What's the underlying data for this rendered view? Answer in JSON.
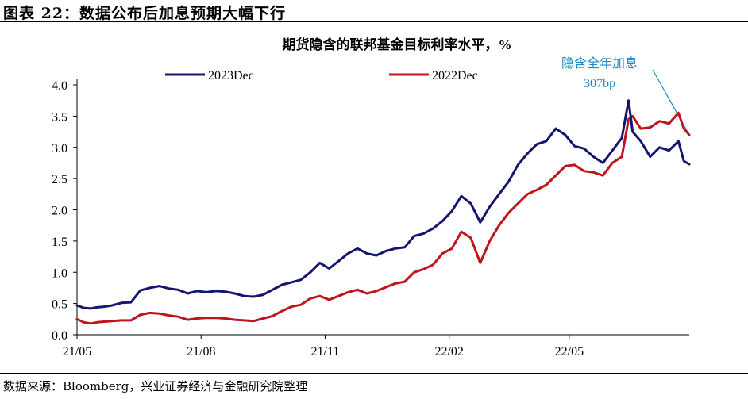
{
  "figure_title": "图表 22：数据公布后加息预期大幅下行",
  "source": "数据来源：Bloomberg，兴业证券经济与金融研究院整理",
  "colors": {
    "series_2023": "#14166e",
    "series_2022": "#c0141c",
    "annotation": "#1f8bc6"
  },
  "chart_data": {
    "type": "line",
    "title": "期货隐含的联邦基金目标利率水平，%",
    "xlabel": "",
    "ylabel": "",
    "ylim": [
      0,
      4.0
    ],
    "yticks": [
      "0.0",
      "0.5",
      "1.0",
      "1.5",
      "2.0",
      "2.5",
      "3.0",
      "3.5",
      "4.0"
    ],
    "xlim": [
      "2021-05-01",
      "2022-07-29"
    ],
    "xticks": [
      {
        "label": "21/05",
        "date": "2021-05-01"
      },
      {
        "label": "21/08",
        "date": "2021-08-01"
      },
      {
        "label": "21/11",
        "date": "2021-11-01"
      },
      {
        "label": "22/02",
        "date": "2022-02-01"
      },
      {
        "label": "22/05",
        "date": "2022-05-01"
      }
    ],
    "grid": false,
    "legend": "top",
    "annotation": {
      "line1": "隐含全年加息",
      "line2": "307bp",
      "date": "2022-07-29",
      "value": 3.2
    },
    "series": [
      {
        "name": "2023Dec",
        "points": [
          [
            "2021-05-01",
            0.47
          ],
          [
            "2021-05-06",
            0.43
          ],
          [
            "2021-05-11",
            0.42
          ],
          [
            "2021-05-16",
            0.44
          ],
          [
            "2021-05-21",
            0.45
          ],
          [
            "2021-05-27",
            0.47
          ],
          [
            "2021-06-03",
            0.51
          ],
          [
            "2021-06-10",
            0.52
          ],
          [
            "2021-06-17",
            0.71
          ],
          [
            "2021-06-24",
            0.75
          ],
          [
            "2021-07-01",
            0.78
          ],
          [
            "2021-07-08",
            0.74
          ],
          [
            "2021-07-15",
            0.72
          ],
          [
            "2021-07-22",
            0.66
          ],
          [
            "2021-07-29",
            0.7
          ],
          [
            "2021-08-05",
            0.68
          ],
          [
            "2021-08-12",
            0.7
          ],
          [
            "2021-08-19",
            0.69
          ],
          [
            "2021-08-26",
            0.66
          ],
          [
            "2021-09-02",
            0.62
          ],
          [
            "2021-09-09",
            0.61
          ],
          [
            "2021-09-16",
            0.64
          ],
          [
            "2021-09-23",
            0.72
          ],
          [
            "2021-09-30",
            0.8
          ],
          [
            "2021-10-07",
            0.84
          ],
          [
            "2021-10-14",
            0.88
          ],
          [
            "2021-10-21",
            1.0
          ],
          [
            "2021-10-28",
            1.15
          ],
          [
            "2021-11-04",
            1.06
          ],
          [
            "2021-11-11",
            1.18
          ],
          [
            "2021-11-18",
            1.3
          ],
          [
            "2021-11-25",
            1.38
          ],
          [
            "2021-12-02",
            1.3
          ],
          [
            "2021-12-09",
            1.27
          ],
          [
            "2021-12-16",
            1.34
          ],
          [
            "2021-12-23",
            1.38
          ],
          [
            "2021-12-30",
            1.4
          ],
          [
            "2022-01-06",
            1.58
          ],
          [
            "2022-01-13",
            1.62
          ],
          [
            "2022-01-20",
            1.7
          ],
          [
            "2022-01-27",
            1.82
          ],
          [
            "2022-02-03",
            1.98
          ],
          [
            "2022-02-10",
            2.22
          ],
          [
            "2022-02-17",
            2.1
          ],
          [
            "2022-02-24",
            1.8
          ],
          [
            "2022-03-03",
            2.05
          ],
          [
            "2022-03-10",
            2.25
          ],
          [
            "2022-03-17",
            2.45
          ],
          [
            "2022-03-24",
            2.72
          ],
          [
            "2022-03-31",
            2.9
          ],
          [
            "2022-04-07",
            3.05
          ],
          [
            "2022-04-14",
            3.1
          ],
          [
            "2022-04-21",
            3.3
          ],
          [
            "2022-04-28",
            3.2
          ],
          [
            "2022-05-05",
            3.02
          ],
          [
            "2022-05-12",
            2.98
          ],
          [
            "2022-05-19",
            2.85
          ],
          [
            "2022-05-26",
            2.75
          ],
          [
            "2022-06-02",
            2.95
          ],
          [
            "2022-06-09",
            3.15
          ],
          [
            "2022-06-14",
            3.75
          ],
          [
            "2022-06-17",
            3.25
          ],
          [
            "2022-06-23",
            3.1
          ],
          [
            "2022-06-30",
            2.85
          ],
          [
            "2022-07-07",
            3.0
          ],
          [
            "2022-07-14",
            2.95
          ],
          [
            "2022-07-21",
            3.1
          ],
          [
            "2022-07-25",
            2.78
          ],
          [
            "2022-07-29",
            2.73
          ]
        ]
      },
      {
        "name": "2022Dec",
        "points": [
          [
            "2021-05-01",
            0.25
          ],
          [
            "2021-05-06",
            0.2
          ],
          [
            "2021-05-11",
            0.18
          ],
          [
            "2021-05-16",
            0.2
          ],
          [
            "2021-05-21",
            0.21
          ],
          [
            "2021-05-27",
            0.22
          ],
          [
            "2021-06-03",
            0.23
          ],
          [
            "2021-06-10",
            0.23
          ],
          [
            "2021-06-17",
            0.32
          ],
          [
            "2021-06-24",
            0.35
          ],
          [
            "2021-07-01",
            0.34
          ],
          [
            "2021-07-08",
            0.31
          ],
          [
            "2021-07-15",
            0.29
          ],
          [
            "2021-07-22",
            0.24
          ],
          [
            "2021-07-29",
            0.26
          ],
          [
            "2021-08-05",
            0.27
          ],
          [
            "2021-08-12",
            0.27
          ],
          [
            "2021-08-19",
            0.26
          ],
          [
            "2021-08-26",
            0.24
          ],
          [
            "2021-09-02",
            0.23
          ],
          [
            "2021-09-09",
            0.22
          ],
          [
            "2021-09-16",
            0.26
          ],
          [
            "2021-09-23",
            0.3
          ],
          [
            "2021-09-30",
            0.38
          ],
          [
            "2021-10-07",
            0.45
          ],
          [
            "2021-10-14",
            0.48
          ],
          [
            "2021-10-21",
            0.58
          ],
          [
            "2021-10-28",
            0.62
          ],
          [
            "2021-11-04",
            0.56
          ],
          [
            "2021-11-11",
            0.62
          ],
          [
            "2021-11-18",
            0.68
          ],
          [
            "2021-11-25",
            0.72
          ],
          [
            "2021-12-02",
            0.66
          ],
          [
            "2021-12-09",
            0.7
          ],
          [
            "2021-12-16",
            0.76
          ],
          [
            "2021-12-23",
            0.82
          ],
          [
            "2021-12-30",
            0.85
          ],
          [
            "2022-01-06",
            1.0
          ],
          [
            "2022-01-13",
            1.05
          ],
          [
            "2022-01-20",
            1.12
          ],
          [
            "2022-01-27",
            1.3
          ],
          [
            "2022-02-03",
            1.38
          ],
          [
            "2022-02-10",
            1.65
          ],
          [
            "2022-02-17",
            1.55
          ],
          [
            "2022-02-24",
            1.15
          ],
          [
            "2022-03-03",
            1.5
          ],
          [
            "2022-03-10",
            1.75
          ],
          [
            "2022-03-17",
            1.95
          ],
          [
            "2022-03-24",
            2.1
          ],
          [
            "2022-03-31",
            2.25
          ],
          [
            "2022-04-07",
            2.32
          ],
          [
            "2022-04-14",
            2.4
          ],
          [
            "2022-04-21",
            2.55
          ],
          [
            "2022-04-28",
            2.7
          ],
          [
            "2022-05-05",
            2.72
          ],
          [
            "2022-05-12",
            2.62
          ],
          [
            "2022-05-19",
            2.6
          ],
          [
            "2022-05-26",
            2.55
          ],
          [
            "2022-06-02",
            2.75
          ],
          [
            "2022-06-09",
            2.85
          ],
          [
            "2022-06-14",
            3.45
          ],
          [
            "2022-06-17",
            3.5
          ],
          [
            "2022-06-23",
            3.3
          ],
          [
            "2022-06-30",
            3.32
          ],
          [
            "2022-07-07",
            3.42
          ],
          [
            "2022-07-14",
            3.38
          ],
          [
            "2022-07-21",
            3.55
          ],
          [
            "2022-07-25",
            3.3
          ],
          [
            "2022-07-29",
            3.2
          ]
        ]
      }
    ]
  }
}
